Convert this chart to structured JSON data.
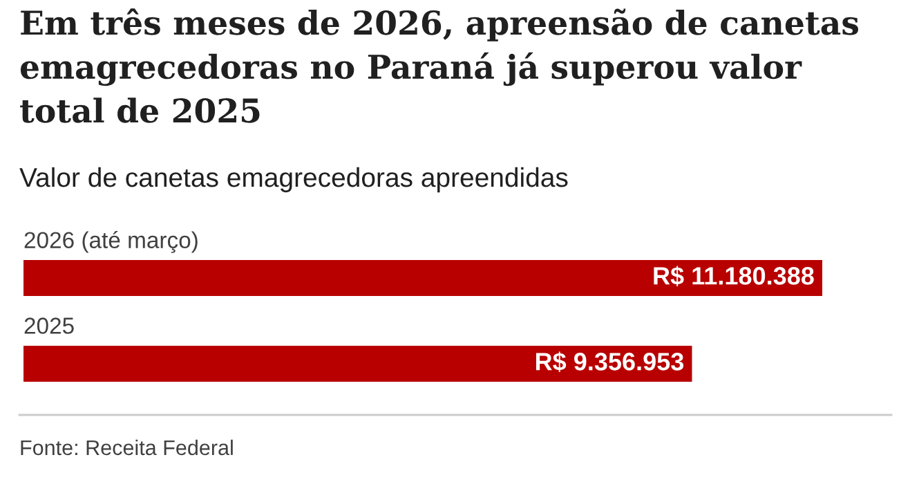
{
  "chart_data": {
    "type": "bar",
    "orientation": "horizontal",
    "title": "Em três meses de 2026, apreensão de canetas emagrecedoras no Paraná já superou valor total de 2025",
    "subtitle": "Valor de canetas emagrecedoras apreendidas",
    "categories": [
      "2026 (até março)",
      "2025"
    ],
    "values": [
      11180388,
      9356953
    ],
    "colors": [
      "#b80000",
      "#b80000"
    ],
    "value_labels": [
      "R$ 11.180.388",
      "R$ 9.356.953"
    ],
    "annotations": [
      "Fonte: Receita Federal"
    ]
  }
}
